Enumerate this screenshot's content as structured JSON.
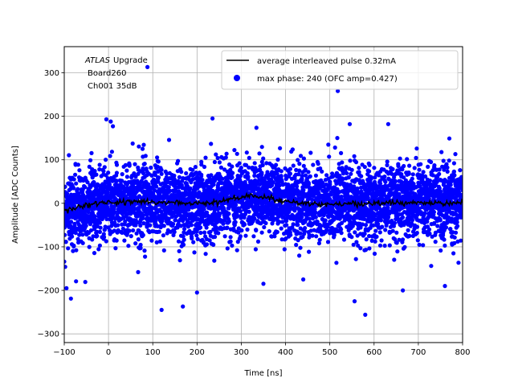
{
  "chart_data": {
    "type": "scatter",
    "title": "",
    "xlabel": "Time [ns]",
    "ylabel": "Amplitude [ADC Counts]",
    "xlim": [
      -100,
      800
    ],
    "ylim": [
      -320,
      360
    ],
    "xticks": [
      -100,
      0,
      100,
      200,
      300,
      400,
      500,
      600,
      700,
      800
    ],
    "yticks": [
      -300,
      -200,
      -100,
      0,
      100,
      200,
      300
    ],
    "grid": true,
    "legend_position": "top-right",
    "annotation": {
      "experiment": "ATLAS",
      "experiment_suffix": "Upgrade",
      "lines": [
        "Board260",
        "Ch001 35dB"
      ]
    },
    "series": [
      {
        "name": "average interleaved pulse 0.32mA",
        "kind": "line",
        "color": "#000000",
        "x": [
          -100,
          -75,
          -50,
          -25,
          0,
          25,
          50,
          75,
          100,
          125,
          150,
          175,
          200,
          225,
          250,
          275,
          300,
          325,
          350,
          375,
          400,
          425,
          450,
          475,
          500,
          525,
          550,
          575,
          600,
          625,
          650,
          675,
          700,
          725,
          750,
          775,
          800
        ],
        "y": [
          -18,
          -10,
          -4,
          0,
          2,
          3,
          4,
          4,
          3,
          2,
          1,
          0,
          -1,
          1,
          5,
          10,
          15,
          17,
          14,
          9,
          5,
          2,
          0,
          -1,
          -2,
          -2,
          -1,
          -1,
          0,
          0,
          1,
          1,
          1,
          0,
          0,
          1,
          2
        ]
      },
      {
        "name": "max phase: 240 (OFC amp=0.427)",
        "kind": "scatter",
        "color": "#0000ff",
        "noise_sigma": 42,
        "outliers": [
          {
            "x": 88,
            "y": 313
          },
          {
            "x": 518,
            "y": 258
          },
          {
            "x": -5,
            "y": 193
          },
          {
            "x": 5,
            "y": 188
          },
          {
            "x": 235,
            "y": 195
          },
          {
            "x": 545,
            "y": 182
          },
          {
            "x": 10,
            "y": 177
          },
          {
            "x": 632,
            "y": 182
          },
          {
            "x": 770,
            "y": 149
          },
          {
            "x": -85,
            "y": -219
          },
          {
            "x": 120,
            "y": -245
          },
          {
            "x": 168,
            "y": -237
          },
          {
            "x": 580,
            "y": -256
          },
          {
            "x": 556,
            "y": -225
          },
          {
            "x": 200,
            "y": -205
          },
          {
            "x": 665,
            "y": -200
          },
          {
            "x": -95,
            "y": -195
          },
          {
            "x": 350,
            "y": -185
          },
          {
            "x": 440,
            "y": -175
          },
          {
            "x": 760,
            "y": -190
          }
        ]
      }
    ]
  }
}
